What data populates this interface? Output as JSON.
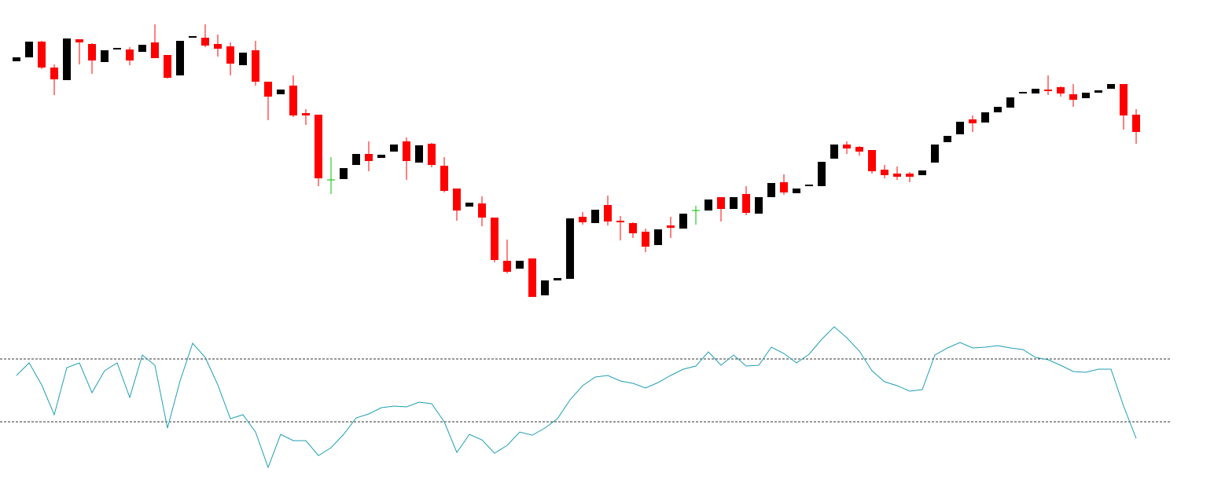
{
  "chart_data": [
    {
      "type": "candlestick",
      "up_color": "#000000",
      "down_color": "#ff0000",
      "doji_color": "#00c000",
      "ylim": [
        0,
        400
      ],
      "open": [
        322,
        327,
        347,
        314,
        298,
        350,
        344,
        321,
        337,
        337,
        334,
        346,
        330,
        304,
        352,
        352,
        344,
        341,
        317,
        336,
        296,
        280,
        291,
        256,
        254,
        171,
        172,
        190,
        204,
        199,
        207,
        220,
        193,
        217,
        189,
        160,
        137,
        141,
        123,
        68,
        58,
        71,
        24,
        43,
        45,
        124,
        116,
        139,
        119,
        116,
        105,
        88,
        113,
        109,
        132,
        132,
        149,
        134,
        153,
        128,
        149,
        168,
        154,
        163,
        163,
        198,
        216,
        213,
        209,
        184,
        179,
        179,
        177,
        193,
        219,
        229,
        248,
        244,
        257,
        263,
        281,
        281,
        286,
        289,
        280,
        275,
        282,
        287,
        293,
        254
      ],
      "high": [
        327,
        347,
        348,
        318,
        351,
        350,
        345,
        336,
        339,
        340,
        343,
        369,
        330,
        348,
        354,
        369,
        356,
        346,
        333,
        348,
        296,
        286,
        304,
        261,
        254,
        200,
        186,
        204,
        220,
        203,
        216,
        225,
        215,
        218,
        200,
        160,
        142,
        150,
        123,
        95,
        68,
        71,
        43,
        46,
        122,
        130,
        133,
        151,
        125,
        117,
        109,
        108,
        124,
        128,
        138,
        146,
        149,
        149,
        163,
        149,
        167,
        178,
        160,
        165,
        194,
        216,
        220,
        214,
        209,
        190,
        188,
        181,
        183,
        216,
        227,
        245,
        253,
        257,
        264,
        276,
        283,
        287,
        304,
        290,
        293,
        282,
        285,
        293,
        293,
        261
      ],
      "low": [
        322,
        327,
        312,
        279,
        298,
        318,
        306,
        321,
        337,
        317,
        334,
        326,
        300,
        304,
        352,
        340,
        328,
        304,
        317,
        291,
        247,
        280,
        251,
        241,
        163,
        153,
        172,
        190,
        182,
        199,
        207,
        171,
        193,
        187,
        155,
        119,
        137,
        112,
        66,
        52,
        58,
        22,
        24,
        43,
        45,
        114,
        116,
        113,
        94,
        97,
        79,
        88,
        97,
        109,
        114,
        132,
        118,
        134,
        126,
        128,
        149,
        152,
        154,
        163,
        163,
        198,
        204,
        202,
        179,
        173,
        171,
        168,
        177,
        193,
        219,
        229,
        232,
        244,
        257,
        263,
        281,
        281,
        279,
        277,
        264,
        275,
        282,
        287,
        235,
        217
      ],
      "close": [
        327,
        347,
        314,
        299,
        351,
        346,
        323,
        336,
        339,
        323,
        343,
        326,
        301,
        348,
        354,
        342,
        338,
        319,
        333,
        296,
        277,
        286,
        253,
        253,
        173,
        171,
        186,
        204,
        195,
        203,
        216,
        195,
        215,
        190,
        157,
        132,
        142,
        123,
        69,
        54,
        68,
        22,
        43,
        46,
        122,
        117,
        133,
        118,
        117,
        103,
        86,
        108,
        110,
        128,
        132,
        146,
        134,
        149,
        129,
        149,
        167,
        155,
        160,
        165,
        194,
        216,
        211,
        207,
        182,
        177,
        175,
        175,
        183,
        216,
        227,
        245,
        243,
        257,
        264,
        276,
        283,
        287,
        284,
        281,
        273,
        282,
        285,
        293,
        253,
        232
      ]
    },
    {
      "type": "line",
      "color": "#1f9fb4",
      "ylim": [
        0,
        100
      ],
      "levels": [
        30,
        70
      ],
      "level_color": "#333333",
      "values": [
        59.5,
        67.5,
        53.5,
        34.5,
        64.5,
        67.5,
        48.5,
        62.5,
        67.5,
        45.5,
        72.5,
        66,
        26,
        56,
        80,
        71,
        53.5,
        32,
        34.5,
        23.5,
        1,
        22,
        18,
        18,
        8.5,
        13.5,
        22,
        32.5,
        35,
        39,
        40,
        39.5,
        42.5,
        41.5,
        30,
        10.5,
        22,
        18.5,
        10,
        15,
        23.5,
        21.5,
        26,
        32,
        44,
        53,
        58.5,
        59.5,
        56,
        54.5,
        51.5,
        55,
        59.5,
        63.5,
        65.5,
        74.5,
        66,
        72.5,
        65.5,
        66,
        77.5,
        73.5,
        67.5,
        73,
        82.5,
        90.5,
        83.5,
        75,
        62.5,
        55.5,
        53,
        49.5,
        50.5,
        72.5,
        77,
        80.5,
        77,
        77.5,
        78.5,
        77,
        76,
        71,
        69.5,
        66,
        62,
        61.5,
        63.5,
        63.5,
        40,
        19.5
      ]
    }
  ]
}
